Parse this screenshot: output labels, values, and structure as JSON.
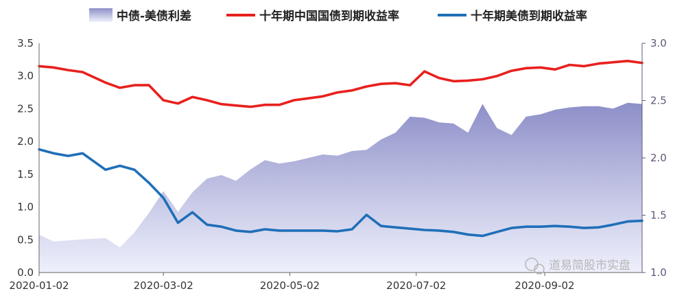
{
  "chart_data": {
    "type": "line",
    "x": [
      "2020-01-02",
      "2020-01-09",
      "2020-01-16",
      "2020-01-23",
      "2020-02-03",
      "2020-02-10",
      "2020-02-17",
      "2020-02-24",
      "2020-03-02",
      "2020-03-09",
      "2020-03-16",
      "2020-03-23",
      "2020-03-30",
      "2020-04-06",
      "2020-04-13",
      "2020-04-20",
      "2020-04-27",
      "2020-05-04",
      "2020-05-11",
      "2020-05-18",
      "2020-05-25",
      "2020-06-01",
      "2020-06-08",
      "2020-06-15",
      "2020-06-22",
      "2020-06-29",
      "2020-07-06",
      "2020-07-13",
      "2020-07-20",
      "2020-07-27",
      "2020-08-03",
      "2020-08-10",
      "2020-08-17",
      "2020-08-24",
      "2020-08-31",
      "2020-09-07",
      "2020-09-14",
      "2020-09-21",
      "2020-09-28",
      "2020-10-05",
      "2020-10-12",
      "2020-10-19"
    ],
    "x_ticks": [
      "2020-01-02",
      "2020-03-02",
      "2020-05-02",
      "2020-07-02",
      "2020-09-02"
    ],
    "left_axis": {
      "min": 0,
      "max": 3.5,
      "ticks": [
        "0.0",
        "0.5",
        "1.0",
        "1.5",
        "2.0",
        "2.5",
        "3.0",
        "3.5"
      ]
    },
    "right_axis": {
      "min": 1.0,
      "max": 3.0,
      "ticks": [
        "1.0",
        "1.5",
        "2.0",
        "2.5",
        "3.0"
      ]
    },
    "series": [
      {
        "name": "中债-美债利差",
        "kind": "area",
        "axis": "right",
        "color": "#8c8ec8",
        "values": [
          1.33,
          1.27,
          1.28,
          1.29,
          1.3,
          1.22,
          1.35,
          1.52,
          1.71,
          1.53,
          1.7,
          1.82,
          1.85,
          1.8,
          1.9,
          1.98,
          1.95,
          1.97,
          2.0,
          2.03,
          2.02,
          2.06,
          2.07,
          2.16,
          2.22,
          2.36,
          2.35,
          2.31,
          2.3,
          2.22,
          2.47,
          2.26,
          2.2,
          2.36,
          2.38,
          2.42,
          2.44,
          2.45,
          2.45,
          2.43,
          2.48,
          2.47
        ]
      },
      {
        "name": "十年期中国国债到期收益率",
        "kind": "line",
        "axis": "left",
        "color": "#e8201e",
        "values": [
          3.15,
          3.13,
          3.09,
          3.06,
          2.9,
          2.82,
          2.86,
          2.86,
          2.63,
          2.58,
          2.68,
          2.63,
          2.57,
          2.55,
          2.53,
          2.56,
          2.56,
          2.63,
          2.66,
          2.69,
          2.75,
          2.78,
          2.84,
          2.88,
          2.89,
          2.86,
          3.07,
          2.97,
          2.92,
          2.93,
          2.95,
          3.0,
          3.08,
          3.12,
          3.13,
          3.1,
          3.17,
          3.15,
          3.19,
          3.21,
          3.23,
          3.2
        ]
      },
      {
        "name": "十年期美债到期收益率",
        "kind": "line",
        "axis": "left",
        "color": "#1f6fb8",
        "values": [
          1.88,
          1.82,
          1.78,
          1.82,
          1.57,
          1.63,
          1.57,
          1.37,
          1.14,
          0.76,
          0.92,
          0.73,
          0.7,
          0.64,
          0.62,
          0.66,
          0.64,
          0.64,
          0.64,
          0.64,
          0.63,
          0.66,
          0.88,
          0.71,
          0.69,
          0.67,
          0.65,
          0.64,
          0.62,
          0.58,
          0.56,
          0.62,
          0.68,
          0.7,
          0.7,
          0.71,
          0.7,
          0.68,
          0.69,
          0.73,
          0.78,
          0.79
        ]
      }
    ],
    "legend_placement": "top",
    "grid": false
  },
  "watermark": "道易简股市实盘"
}
